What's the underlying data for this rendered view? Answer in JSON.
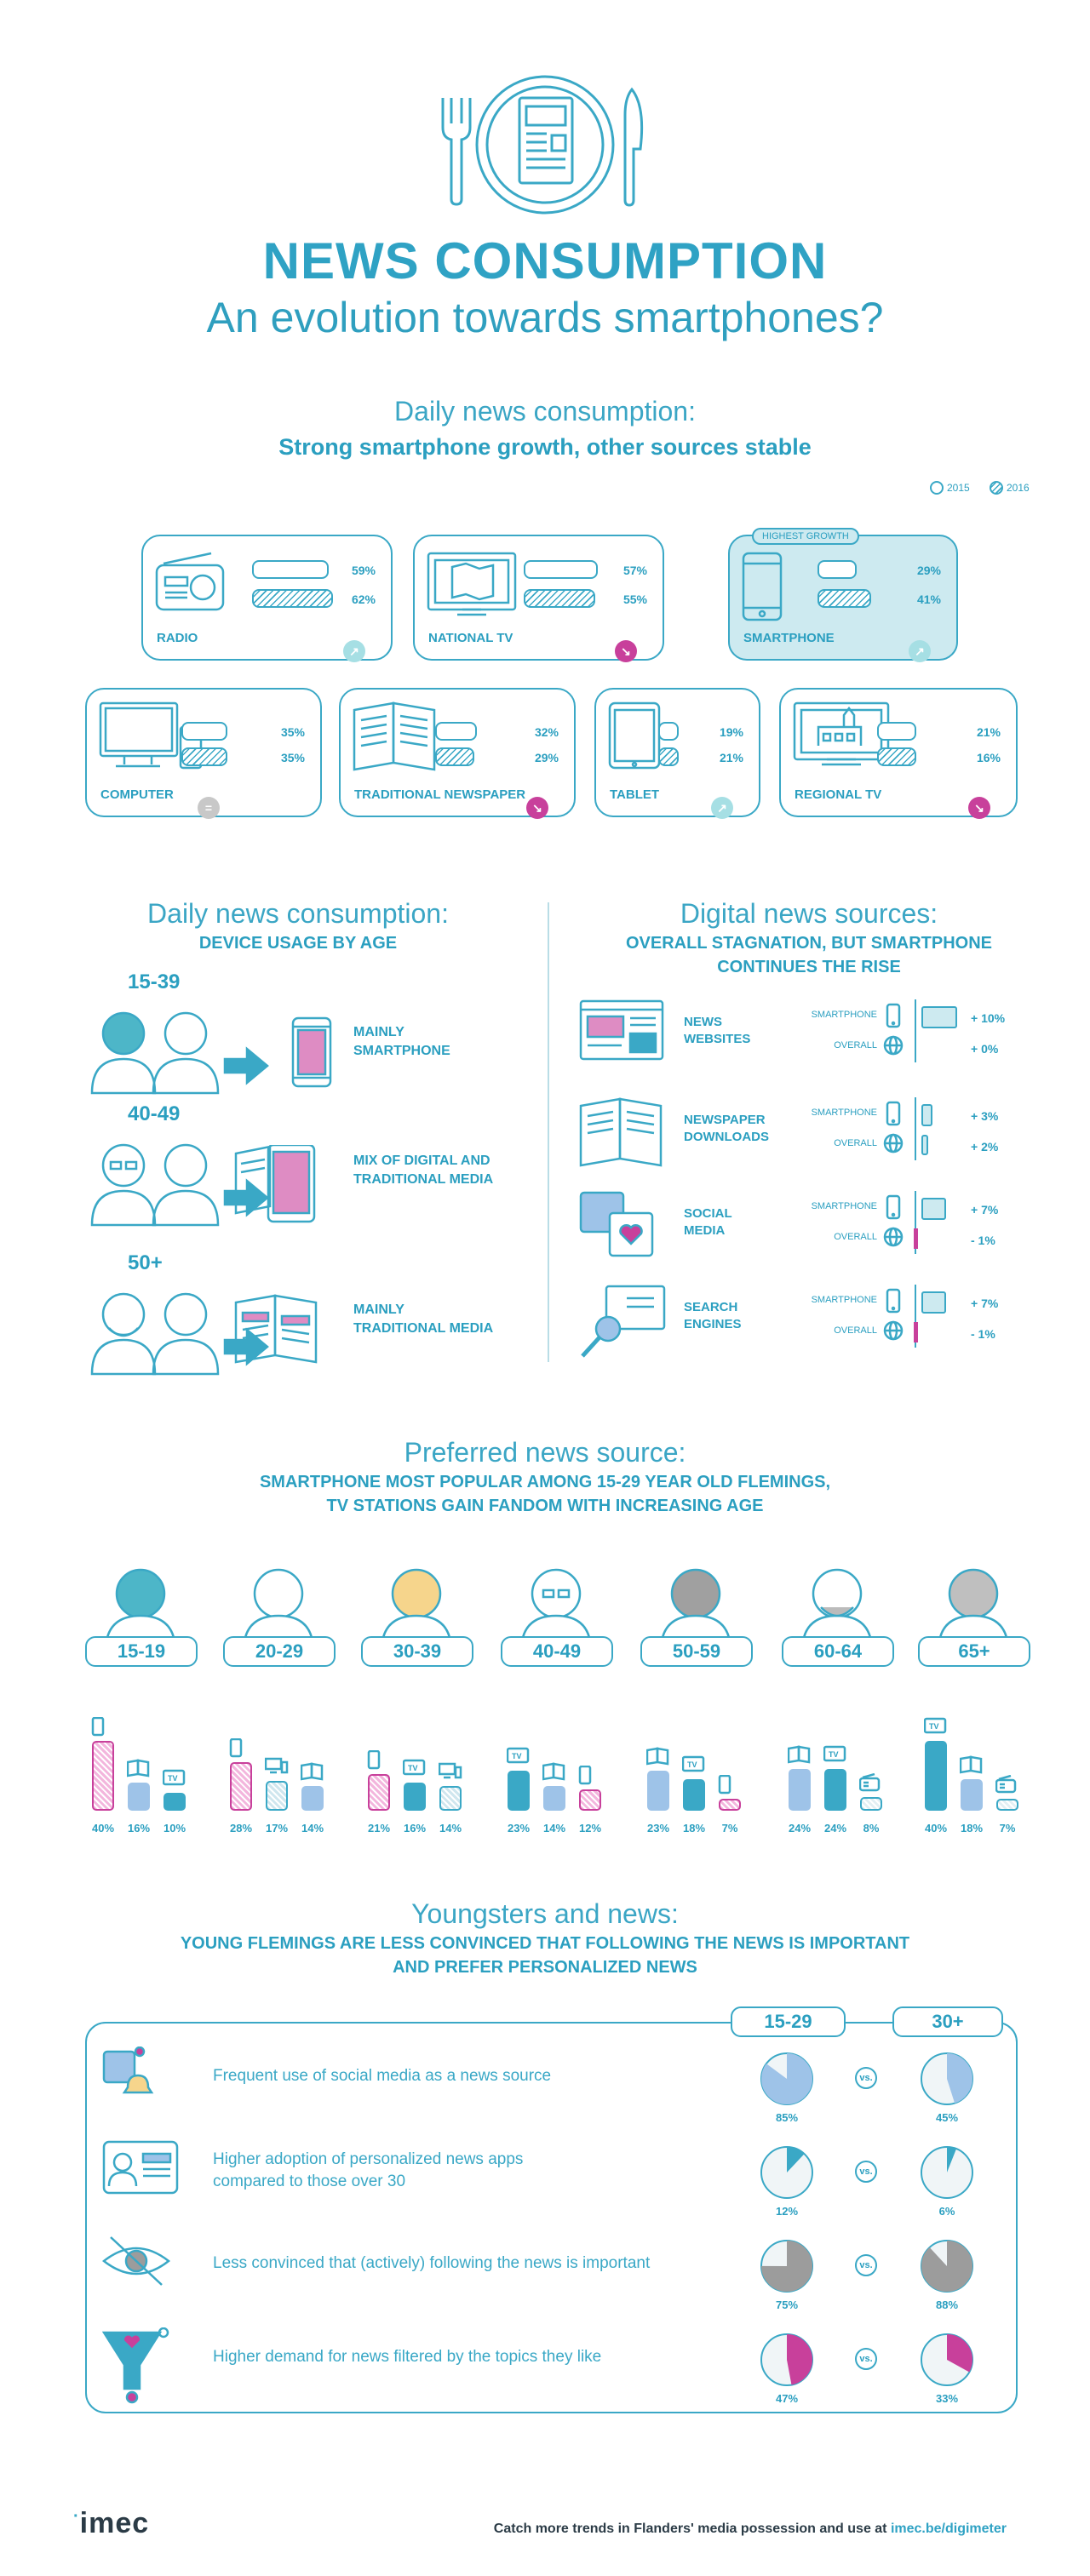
{
  "header": {
    "title": "NEWS CONSUMPTION",
    "subtitle": "An evolution towards smartphones?"
  },
  "section1": {
    "heading": "Daily news consumption:",
    "subheading": "Strong smartphone growth, other sources stable",
    "legend_2015": "2015",
    "legend_2016": "2016",
    "highlight_tag": "HIGHEST GROWTH",
    "devices": [
      {
        "label": "RADIO",
        "v2015": "59%",
        "v2016": "62%",
        "p2015": 59,
        "p2016": 62,
        "trend": "up"
      },
      {
        "label": "NATIONAL TV",
        "v2015": "57%",
        "v2016": "55%",
        "p2015": 57,
        "p2016": 55,
        "trend": "down"
      },
      {
        "label": "SMARTPHONE",
        "v2015": "29%",
        "v2016": "41%",
        "p2015": 29,
        "p2016": 41,
        "trend": "up"
      },
      {
        "label": "COMPUTER",
        "v2015": "35%",
        "v2016": "35%",
        "p2015": 35,
        "p2016": 35,
        "trend": "equal"
      },
      {
        "label": "TRADITIONAL NEWSPAPER",
        "v2015": "32%",
        "v2016": "29%",
        "p2015": 32,
        "p2016": 29,
        "trend": "down"
      },
      {
        "label": "TABLET",
        "v2015": "19%",
        "v2016": "21%",
        "p2015": 19,
        "p2016": 21,
        "trend": "up"
      },
      {
        "label": "REGIONAL TV",
        "v2015": "21%",
        "v2016": "16%",
        "p2015": 21,
        "p2016": 16,
        "trend": "down"
      }
    ]
  },
  "section2": {
    "left_heading": "Daily news consumption:",
    "left_sub": "DEVICE USAGE BY AGE",
    "groups": [
      {
        "age": "15-39",
        "text1": "MAINLY",
        "text2": "SMARTPHONE"
      },
      {
        "age": "40-49",
        "text1": "MIX OF DIGITAL AND",
        "text2": "TRADITIONAL MEDIA"
      },
      {
        "age": "50+",
        "text1": "MAINLY",
        "text2": "TRADITIONAL MEDIA"
      }
    ],
    "right_heading": "Digital news sources:",
    "right_sub1": "OVERALL STAGNATION, BUT SMARTPHONE",
    "right_sub2": "CONTINUES THE RISE",
    "row_smartphone": "SMARTPHONE",
    "row_overall": "OVERALL",
    "sources": [
      {
        "l1": "NEWS",
        "l2": "WEBSITES",
        "smart": "+ 10%",
        "overall": "+ 0%",
        "s": 10,
        "o": 0
      },
      {
        "l1": "NEWSPAPER",
        "l2": "DOWNLOADS",
        "smart": "+ 3%",
        "overall": "+ 2%",
        "s": 3,
        "o": 2
      },
      {
        "l1": "SOCIAL",
        "l2": "MEDIA",
        "smart": "+ 7%",
        "overall": "- 1%",
        "s": 7,
        "o": -1
      },
      {
        "l1": "SEARCH",
        "l2": "ENGINES",
        "smart": "+ 7%",
        "overall": "- 1%",
        "s": 7,
        "o": -1
      }
    ]
  },
  "section3": {
    "heading": "Preferred news source:",
    "sub1": "SMARTPHONE MOST POPULAR AMONG 15-29 YEAR OLD FLEMINGS,",
    "sub2": "TV STATIONS GAIN FANDOM WITH INCREASING AGE",
    "tv_label": "TV",
    "groups": [
      {
        "age": "15-19",
        "vals": [
          "40%",
          "16%",
          "10%"
        ],
        "nums": [
          40,
          16,
          10
        ],
        "kinds": [
          "smartphone",
          "newspaper",
          "tv"
        ]
      },
      {
        "age": "20-29",
        "vals": [
          "28%",
          "17%",
          "14%"
        ],
        "nums": [
          28,
          17,
          14
        ],
        "kinds": [
          "smartphone",
          "computer",
          "newspaper"
        ]
      },
      {
        "age": "30-39",
        "vals": [
          "21%",
          "16%",
          "14%"
        ],
        "nums": [
          21,
          16,
          14
        ],
        "kinds": [
          "smartphone",
          "tv",
          "computer"
        ]
      },
      {
        "age": "40-49",
        "vals": [
          "23%",
          "14%",
          "12%"
        ],
        "nums": [
          23,
          14,
          12
        ],
        "kinds": [
          "tv",
          "newspaper",
          "smartphone"
        ]
      },
      {
        "age": "50-59",
        "vals": [
          "23%",
          "18%",
          "7%"
        ],
        "nums": [
          23,
          18,
          7
        ],
        "kinds": [
          "newspaper",
          "tv",
          "smartphone"
        ]
      },
      {
        "age": "60-64",
        "vals": [
          "24%",
          "24%",
          "8%"
        ],
        "nums": [
          24,
          24,
          8
        ],
        "kinds": [
          "newspaper",
          "tv",
          "radio"
        ]
      },
      {
        "age": "65+",
        "vals": [
          "40%",
          "18%",
          "7%"
        ],
        "nums": [
          40,
          18,
          7
        ],
        "kinds": [
          "tv",
          "newspaper",
          "radio"
        ]
      }
    ]
  },
  "section4": {
    "heading": "Youngsters and news:",
    "sub1": "YOUNG FLEMINGS ARE LESS CONVINCED THAT FOLLOWING THE NEWS IS IMPORTANT",
    "sub2": "AND PREFER PERSONALIZED NEWS",
    "col_young": "15-29",
    "col_old": "30+",
    "vs_label": "vs.",
    "rows": [
      {
        "t1": "Frequent use of social media as a news source",
        "t2": "",
        "young": "85%",
        "old": "45%",
        "yn": 85,
        "on": 45,
        "color": "#9ec3e8"
      },
      {
        "t1": "Higher adoption of personalized news apps",
        "t2": "compared to those over 30",
        "young": "12%",
        "old": "6%",
        "yn": 12,
        "on": 6,
        "color": "#3aa8c6"
      },
      {
        "t1": "Less convinced that (actively) following the news is important",
        "t2": "",
        "young": "75%",
        "old": "88%",
        "yn": 75,
        "on": 88,
        "color": "#9c9c9c"
      },
      {
        "t1": "Higher demand for news filtered by the topics they like",
        "t2": "",
        "young": "47%",
        "old": "33%",
        "yn": 47,
        "on": 33,
        "color": "#c8409b"
      }
    ]
  },
  "footer": {
    "logo": "imec",
    "text_pre": "Catch more trends in Flanders' media possession and use at ",
    "link": "imec.be/digimeter"
  },
  "colors": {
    "accent": "#2fa2c4",
    "magenta": "#c8409b",
    "pale": "#cdeaf0",
    "blue": "#9ec3e8"
  }
}
